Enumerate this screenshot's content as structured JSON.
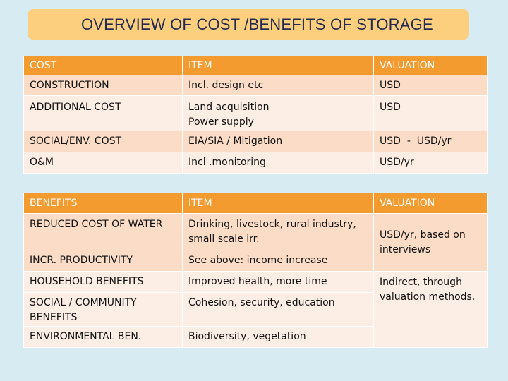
{
  "title": "OVERVIEW OF COST /BENEFITS OF STORAGE",
  "costs": {
    "headers": [
      "COST",
      "ITEM",
      "VALUATION"
    ],
    "rows": [
      [
        "CONSTRUCTION",
        "Incl. design etc",
        "USD"
      ],
      [
        "ADDITIONAL COST",
        "Land acquisition\nPower supply",
        "USD"
      ],
      [
        "SOCIAL/ENV. COST",
        "EIA/SIA / Mitigation",
        "USD  -  USD/yr"
      ],
      [
        "O&M",
        "Incl .monitoring",
        "USD/yr"
      ]
    ]
  },
  "benefits": {
    "headers": [
      "BENEFITS",
      "ITEM",
      "VALUATION"
    ],
    "rows": [
      [
        "REDUCED COST OF WATER",
        "Drinking, livestock, rural industry, small scale irr."
      ],
      [
        "INCR. PRODUCTIVITY",
        "See above: income increase"
      ],
      [
        "HOUSEHOLD BENEFITS",
        "Improved health, more time"
      ],
      [
        "SOCIAL / COMMUNITY BENEFITS",
        "Cohesion, security, education"
      ],
      [
        "ENVIRONMENTAL BEN.",
        "Biodiversity, vegetation"
      ]
    ],
    "valuation_group_1": "USD/yr, based on interviews",
    "valuation_group_2": "Indirect, through valuation methods."
  },
  "colors": {
    "background": "#d6ebf2",
    "title_box": "#fbcf7e",
    "title_text": "#262a52",
    "header_row": "#f39b2f",
    "row_odd": "#fbdcc7",
    "row_even": "#fdeee5"
  }
}
